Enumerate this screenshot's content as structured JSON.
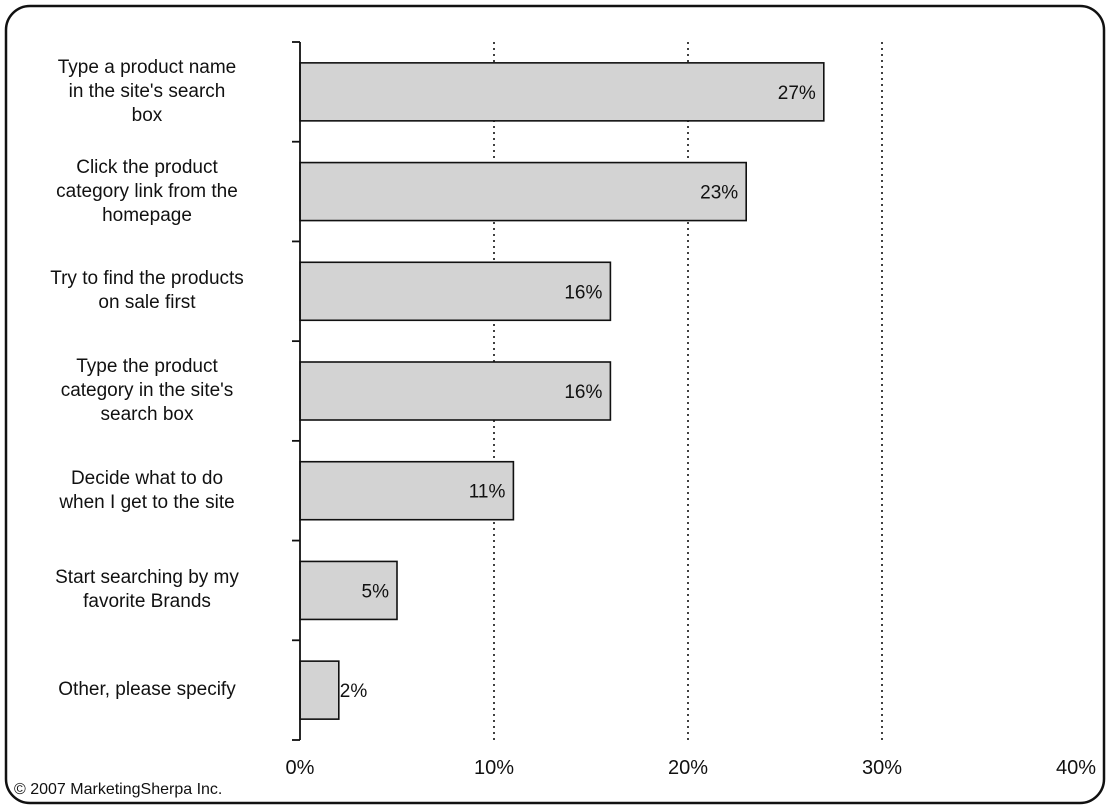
{
  "chart_data": {
    "type": "bar",
    "orientation": "horizontal",
    "categories": [
      "Type a product name in the site's search box",
      "Click the product category link from the homepage",
      "Try to find the products on sale first",
      "Type the product category in the site's search box",
      "Decide what to do when I get to the site",
      "Start searching by my favorite Brands",
      "Other, please specify"
    ],
    "category_lines": [
      [
        "Type a product name",
        "in the site's search",
        "box"
      ],
      [
        "Click the product",
        "category link from the",
        "homepage"
      ],
      [
        "Try to find the products",
        "on sale first"
      ],
      [
        "Type the product",
        "category in the site's",
        "search box"
      ],
      [
        "Decide what to do",
        "when I get to the site"
      ],
      [
        "Start searching by my",
        "favorite Brands"
      ],
      [
        "Other, please specify"
      ]
    ],
    "values": [
      27,
      23,
      16,
      16,
      11,
      5,
      2
    ],
    "value_labels": [
      "27%",
      "23%",
      "16%",
      "16%",
      "11%",
      "5%",
      "2%"
    ],
    "xlim": [
      0,
      40
    ],
    "x_ticks": [
      0,
      10,
      20,
      30,
      40
    ],
    "x_tick_labels": [
      "0%",
      "10%",
      "20%",
      "30%",
      "40%"
    ],
    "grid": "vertical dotted",
    "bar_color": "#d3d3d3",
    "bar_edge_color": "#111111"
  },
  "footer": {
    "copyright": "© 2007 MarketingSherpa Inc."
  }
}
